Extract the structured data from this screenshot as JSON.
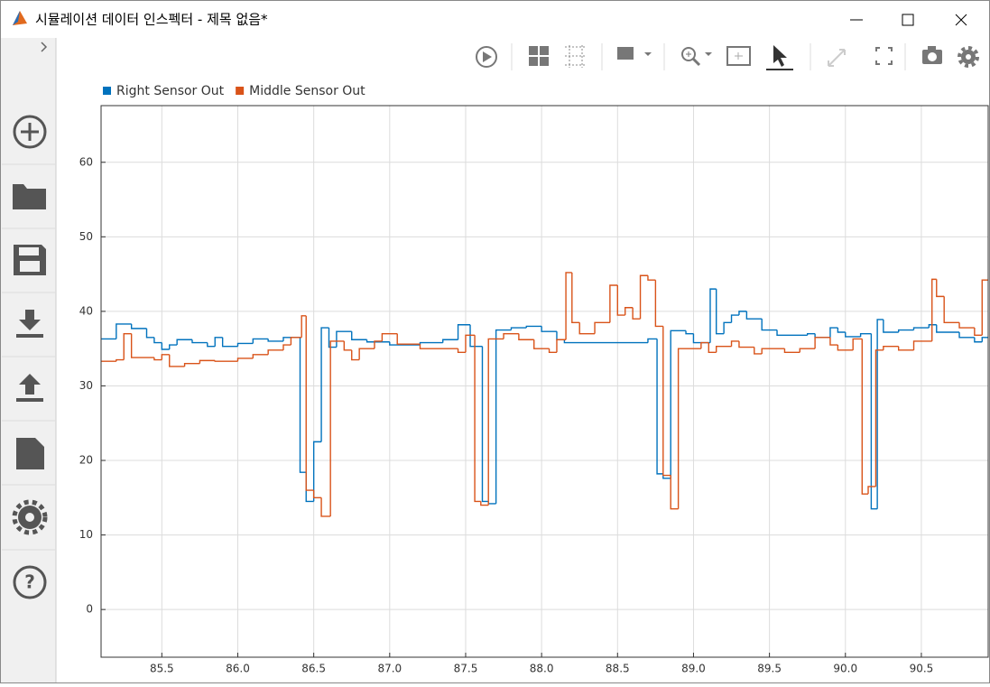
{
  "window": {
    "title": "시뮬레이션 데이터 인스펙터 - 제목 없음*"
  },
  "chart_data": {
    "type": "line",
    "step": "post",
    "grid": true,
    "xlim": [
      85.1,
      90.94
    ],
    "ylim": [
      -6.4,
      67.6
    ],
    "xticks": [
      85.5,
      {
        "value": 86,
        "label": "86.0"
      },
      86.5,
      {
        "value": 87,
        "label": "87.0"
      },
      87.5,
      {
        "value": 88,
        "label": "88.0"
      },
      88.5,
      {
        "value": 89,
        "label": "89.0"
      },
      89.5,
      {
        "value": 90,
        "label": "90.0"
      },
      90.5
    ],
    "yticks": [
      0,
      10,
      20,
      30,
      40,
      50,
      60
    ],
    "legend": "top-left",
    "series": [
      {
        "name": "Right Sensor Out",
        "color": "#0072bd",
        "x": [
          85.1,
          85.2,
          85.3,
          85.4,
          85.45,
          85.5,
          85.55,
          85.6,
          85.7,
          85.8,
          85.85,
          85.9,
          86.0,
          86.1,
          86.2,
          86.3,
          86.41,
          86.45,
          86.5,
          86.55,
          86.6,
          86.65,
          86.75,
          86.85,
          87.0,
          87.2,
          87.35,
          87.45,
          87.53,
          87.61,
          87.65,
          87.7,
          87.8,
          87.9,
          88.0,
          88.1,
          88.15,
          88.7,
          88.76,
          88.8,
          88.85,
          88.95,
          89.0,
          89.11,
          89.15,
          89.2,
          89.25,
          89.3,
          89.35,
          89.45,
          89.55,
          89.75,
          89.8,
          89.9,
          89.95,
          90.0,
          90.1,
          90.17,
          90.21,
          90.25,
          90.35,
          90.45,
          90.55,
          90.6,
          90.75,
          90.85,
          90.9
        ],
        "values": [
          36.3,
          38.3,
          37.7,
          36.5,
          35.8,
          34.9,
          35.5,
          36.2,
          35.8,
          35.3,
          36.5,
          35.3,
          35.7,
          36.3,
          36.0,
          36.5,
          18.4,
          14.5,
          22.5,
          37.8,
          35.2,
          37.3,
          36.2,
          35.9,
          35.5,
          35.8,
          36.2,
          38.2,
          35.3,
          14.5,
          14.2,
          37.5,
          37.8,
          38.0,
          37.3,
          36.2,
          35.8,
          36.3,
          18.2,
          17.6,
          37.4,
          37.0,
          35.8,
          43.0,
          37.0,
          38.5,
          39.5,
          40.0,
          39.0,
          37.5,
          36.8,
          37.0,
          36.5,
          37.8,
          37.2,
          36.6,
          37.0,
          13.5,
          38.9,
          37.2,
          37.5,
          37.8,
          38.2,
          37.2,
          36.5,
          35.9,
          36.5
        ]
      },
      {
        "name": "Middle Sensor Out",
        "color": "#d95319",
        "x": [
          85.1,
          85.2,
          85.25,
          85.3,
          85.45,
          85.5,
          85.55,
          85.65,
          85.75,
          85.85,
          86.0,
          86.1,
          86.2,
          86.3,
          86.35,
          86.42,
          86.45,
          86.5,
          86.55,
          86.61,
          86.7,
          86.75,
          86.8,
          86.9,
          86.95,
          87.05,
          87.2,
          87.45,
          87.5,
          87.56,
          87.6,
          87.65,
          87.75,
          87.85,
          87.95,
          88.05,
          88.1,
          88.16,
          88.2,
          88.25,
          88.35,
          88.45,
          88.5,
          88.55,
          88.6,
          88.65,
          88.7,
          88.75,
          88.8,
          88.85,
          88.9,
          89.05,
          89.1,
          89.15,
          89.25,
          89.3,
          89.4,
          89.45,
          89.6,
          89.7,
          89.8,
          89.9,
          89.95,
          90.05,
          90.11,
          90.15,
          90.2,
          90.25,
          90.35,
          90.45,
          90.57,
          90.6,
          90.65,
          90.75,
          90.85,
          90.9
        ],
        "values": [
          33.3,
          33.5,
          37.0,
          33.8,
          33.5,
          34.2,
          32.6,
          33.0,
          33.4,
          33.3,
          33.7,
          34.2,
          34.8,
          35.5,
          36.5,
          39.4,
          16.0,
          15.0,
          12.5,
          36.0,
          34.8,
          33.5,
          35.0,
          36.0,
          37.0,
          35.6,
          35.0,
          34.5,
          36.8,
          14.5,
          14.0,
          36.3,
          37.0,
          36.2,
          35.0,
          34.5,
          36.2,
          45.2,
          38.5,
          37.0,
          38.5,
          43.5,
          39.5,
          40.5,
          39.0,
          44.8,
          44.2,
          38.0,
          18.0,
          13.5,
          35.0,
          35.8,
          34.5,
          35.3,
          36.0,
          35.2,
          34.3,
          35.0,
          34.5,
          35.0,
          36.5,
          35.5,
          34.8,
          36.3,
          15.5,
          16.5,
          34.8,
          35.3,
          34.8,
          36.0,
          44.3,
          42.0,
          38.5,
          37.8,
          36.8,
          44.2
        ]
      }
    ]
  }
}
